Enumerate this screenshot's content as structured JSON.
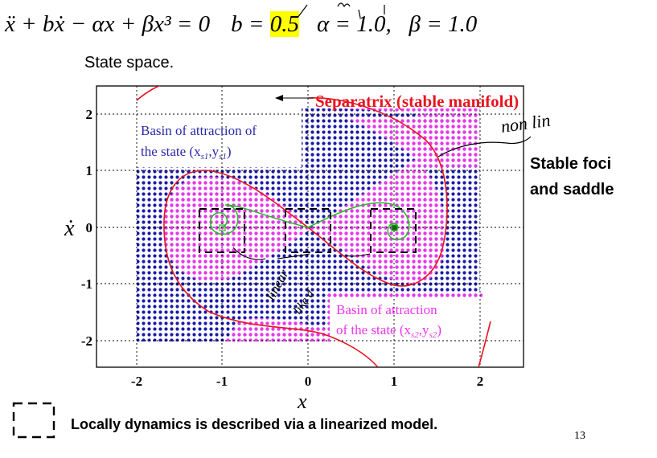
{
  "equation": {
    "lhs": "ẍ + bẋ − αx + βx³ = 0",
    "b_label": "b = ",
    "b_value": "0.5",
    "alpha": "α = 1.0,",
    "beta": "β = 1.0"
  },
  "subtitle": "State space.",
  "side_note": [
    "Stable foci",
    "and saddle"
  ],
  "diagram": {
    "separatrix_label": "Separatrix (stable manifold)",
    "basin1_label": [
      "Basin of attraction of",
      "the state (x",
      "s1",
      ",y",
      "s1",
      ")"
    ],
    "basin2_label": [
      "Basin of attraction",
      "of the state (x",
      "s2",
      ",y",
      "s2",
      ")"
    ],
    "x_ticks": [
      "-2",
      "-1",
      "0",
      "1",
      "2"
    ],
    "y_ticks": [
      "2",
      "1",
      "0",
      "-1",
      "-2"
    ],
    "x_axis_label": "x",
    "y_axis_label": "ẋ",
    "handwriting": [
      "non lin",
      "linear",
      "like d",
      "dam"
    ]
  },
  "footer_caption": "Locally dynamics is described via a linearized model.",
  "page_number": "13",
  "colors": {
    "basin1": "#1a1aaa",
    "basin2": "#ee33ee",
    "separatrix": "#e8141e",
    "trajectory": "#22bb22",
    "highlight": "#ffff00"
  }
}
